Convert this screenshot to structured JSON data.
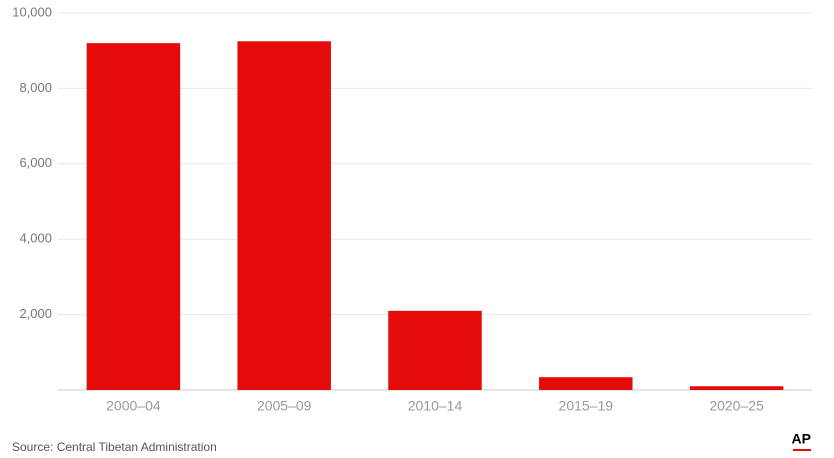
{
  "chart_data": {
    "type": "bar",
    "categories": [
      "2000–04",
      "2005–09",
      "2010–14",
      "2015–19",
      "2020–25"
    ],
    "values": [
      9200,
      9250,
      2100,
      340,
      100
    ],
    "color": "#e60b0b",
    "ylim": [
      0,
      10000
    ],
    "yticks": [
      {
        "value": 2000,
        "label": "2,000"
      },
      {
        "value": 4000,
        "label": "4,000"
      },
      {
        "value": 6000,
        "label": "6,000"
      },
      {
        "value": 8000,
        "label": "8,000"
      },
      {
        "value": 10000,
        "label": "10,000"
      }
    ],
    "grid": true,
    "source": "Source: Central Tibetan Administration",
    "logo": "AP"
  }
}
